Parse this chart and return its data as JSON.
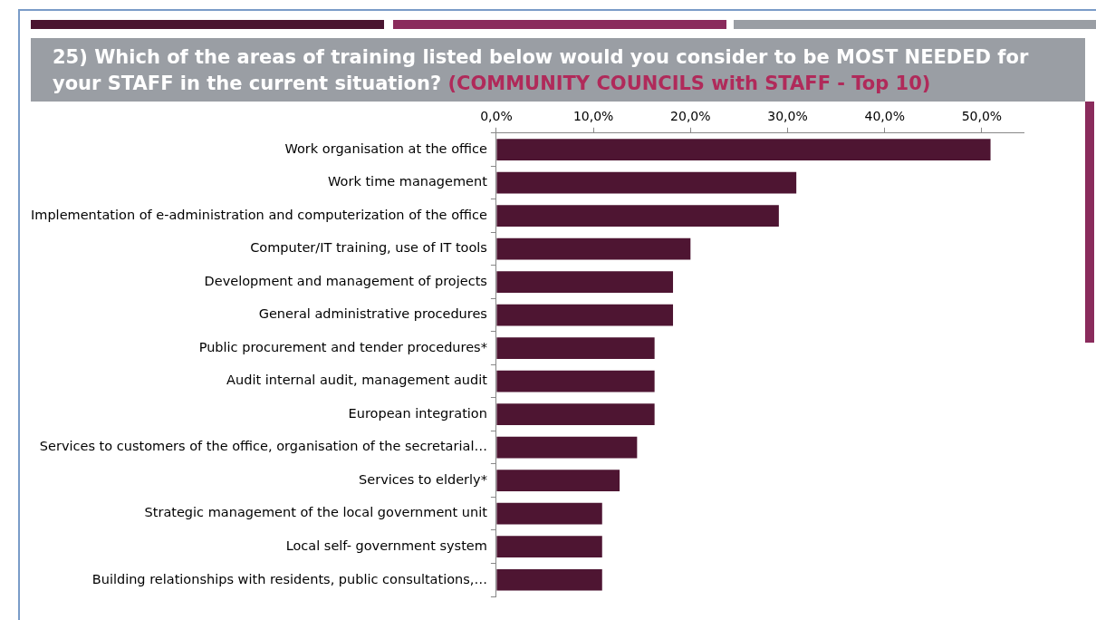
{
  "chart_data": {
    "type": "bar",
    "orientation": "horizontal",
    "title": "25) Which of the areas of training listed below would you consider to be MOST NEEDED for your STAFF in the current situation?",
    "subtitle": "(COMMUNITY COUNCILS with STAFF - Top 10)",
    "categories": [
      "Work organisation at the office",
      "Work time management",
      "Implementation of e-administration and computerization of the office",
      "Computer/IT training, use of IT tools",
      "Development and management of projects",
      "General administrative procedures",
      "Public procurement and tender procedures*",
      "Audit internal audit, management audit",
      "European integration",
      "Services to customers of the office, organisation of the secretarial…",
      "Services to elderly*",
      "Strategic management of the local government unit",
      "Local self- government system",
      "Building relationships with residents, public consultations,…"
    ],
    "values": [
      50.9,
      30.9,
      29.1,
      20.0,
      18.2,
      18.2,
      16.3,
      16.3,
      16.3,
      14.5,
      12.7,
      10.9,
      10.9,
      10.9
    ],
    "color": "#4e1532",
    "xlim": [
      0,
      54.3
    ],
    "xticks": [
      {
        "value": 0,
        "label": "0,0%"
      },
      {
        "value": 10,
        "label": "10,0%"
      },
      {
        "value": 20,
        "label": "20,0%"
      },
      {
        "value": 30,
        "label": "30,0%"
      },
      {
        "value": 40,
        "label": "40,0%"
      },
      {
        "value": 50,
        "label": "50,0%"
      }
    ],
    "grid": false,
    "legend": false
  }
}
